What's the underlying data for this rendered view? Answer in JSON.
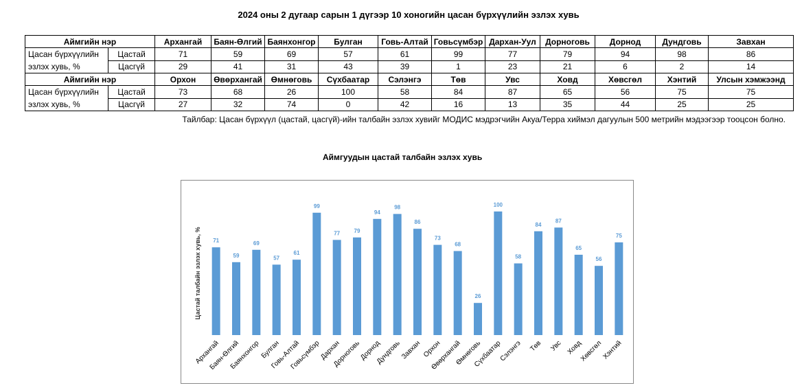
{
  "title": "2024 оны 2 дугаар сарын 1 дүгээр 10 хоногийн цасан бүрхүүлийн эзлэх хувь",
  "table": {
    "header_label": "Аймгийн нэр",
    "row_label": "Цасан бүрхүүлийн эзлэх хувь, %",
    "snow_label": "Цастай",
    "nosnow_label": "Цасгүй",
    "block1": {
      "names": [
        "Архангай",
        "Баян-Өлгий",
        "Баянхонгор",
        "Булган",
        "Говь-Алтай",
        "Говьсүмбэр",
        "Дархан-Уул",
        "Дорноговь",
        "Дорнод",
        "Дундговь",
        "Завхан"
      ],
      "snow": [
        "71",
        "59",
        "69",
        "57",
        "61",
        "99",
        "77",
        "79",
        "94",
        "98",
        "86"
      ],
      "nosnow": [
        "29",
        "41",
        "31",
        "43",
        "39",
        "1",
        "23",
        "21",
        "6",
        "2",
        "14"
      ]
    },
    "block2": {
      "names": [
        "Орхон",
        "Өвөрхангай",
        "Өмнөговь",
        "Сүхбаатар",
        "Сэлэнгэ",
        "Төв",
        "Увс",
        "Ховд",
        "Хөвсгөл",
        "Хэнтий",
        "Улсын хэмжээнд"
      ],
      "snow": [
        "73",
        "68",
        "26",
        "100",
        "58",
        "84",
        "87",
        "65",
        "56",
        "75",
        "75"
      ],
      "nosnow": [
        "27",
        "32",
        "74",
        "0",
        "42",
        "16",
        "13",
        "35",
        "44",
        "25",
        "25"
      ]
    }
  },
  "note": "Тайлбар: Цасан бүрхүүл (цастай, цасгүй)-ийн талбайн эзлэх хувийг МОДИС мэдрэгчийн Акуа/Терра хиймэл дагуулын 500 метрийн мэдээгээр тооцсон болно.",
  "chart_data": {
    "type": "bar",
    "title": "Аймгуудын цастай талбайн эзлэх хувь",
    "ylabel": "Цастай талбайн эзлэх хувь, %",
    "xlabel": "",
    "ylim": [
      0,
      100
    ],
    "grid": false,
    "bar_color": "#5b9bd5",
    "categories": [
      "Архангай",
      "Баян-Өлгий",
      "Баянхонгор",
      "Булган",
      "Говь-Алтай",
      "Говьсүмбэр",
      "Дархан",
      "Дорноговь",
      "Дорнод",
      "Дундговь",
      "Завхан",
      "Орхон",
      "Өвөрхангай",
      "Өмнөговь",
      "Сүхбаатар",
      "Сэлэнгэ",
      "Төв",
      "Увс",
      "Ховд",
      "Хөвсгөл",
      "Хэнтий"
    ],
    "values": [
      71,
      59,
      69,
      57,
      61,
      99,
      77,
      79,
      94,
      98,
      86,
      73,
      68,
      26,
      100,
      58,
      84,
      87,
      65,
      56,
      75
    ]
  }
}
